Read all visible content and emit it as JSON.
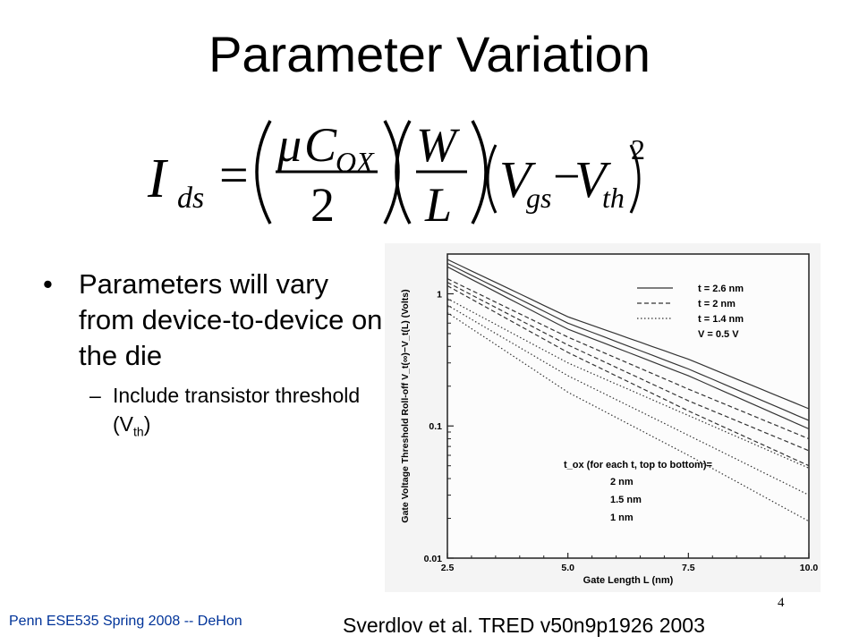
{
  "slide": {
    "title": "Parameter Variation",
    "equation": {
      "lhs": "I",
      "lhs_sub": "ds",
      "equals": "=",
      "f1_num_mu": "μ",
      "f1_num_c": "C",
      "f1_num_sub": "OX",
      "f1_den": "2",
      "f2_num": "W",
      "f2_den": "L",
      "v1": "V",
      "v1_sub": "gs",
      "minus": "−",
      "v2": "V",
      "v2_sub": "th",
      "exponent": "2"
    },
    "bullet_main": "Parameters will vary from device-to-device on the die",
    "bullet_sub_text": "Include transistor threshold (V",
    "bullet_sub_subscript": "th",
    "bullet_sub_close": ")",
    "bullet_symbol": "•",
    "dash_symbol": "–",
    "footer": "Penn ESE535 Spring 2008 -- DeHon",
    "page_number": "4",
    "citation": "Sverdlov et al. TRED v50n9p1926 2003"
  },
  "chart_data": {
    "type": "line",
    "xlabel": "Gate Length L (nm)",
    "ylabel": "Gate Voltage Threshold Roll-off V_t(∞)−V_t(L) (Volts)",
    "xlim": [
      2.5,
      10.0
    ],
    "ylim": [
      0.01,
      2
    ],
    "y_scale": "log",
    "x_ticks": [
      "2.5",
      "5.0",
      "7.5",
      "10.0"
    ],
    "y_ticks": [
      "0.01",
      "0.1",
      "1"
    ],
    "grid": false,
    "legend": {
      "placement": "top-right",
      "entries": [
        {
          "label": "t = 2.6 nm",
          "style": "solid"
        },
        {
          "label": "t = 2 nm",
          "style": "dashed"
        },
        {
          "label": "t = 1.4 nm",
          "style": "dotted"
        },
        {
          "label": "V = 0.5 V",
          "style": "none"
        }
      ]
    },
    "annotation": {
      "header": "t_ox (for each t, top to bottom)=",
      "items": [
        "2 nm",
        "1.5 nm",
        "1 nm"
      ]
    },
    "series": [
      {
        "style": "solid",
        "x": [
          2.5,
          5.0,
          7.5,
          10.0
        ],
        "y": [
          1.82,
          0.67,
          0.32,
          0.135
        ]
      },
      {
        "style": "solid",
        "x": [
          2.5,
          5.0,
          7.5,
          10.0
        ],
        "y": [
          1.7,
          0.6,
          0.27,
          0.11
        ]
      },
      {
        "style": "solid",
        "x": [
          2.5,
          5.0,
          7.5,
          10.0
        ],
        "y": [
          1.6,
          0.54,
          0.24,
          0.095
        ]
      },
      {
        "style": "dashed",
        "x": [
          2.5,
          5.0,
          7.5,
          10.0
        ],
        "y": [
          1.3,
          0.47,
          0.19,
          0.08
        ]
      },
      {
        "style": "dashed",
        "x": [
          2.5,
          5.0,
          7.5,
          10.0
        ],
        "y": [
          1.22,
          0.41,
          0.155,
          0.065
        ]
      },
      {
        "style": "dashed",
        "x": [
          2.5,
          5.0,
          7.5,
          10.0
        ],
        "y": [
          1.15,
          0.36,
          0.13,
          0.05
        ]
      },
      {
        "style": "dotted",
        "x": [
          2.5,
          5.0,
          7.5,
          10.0
        ],
        "y": [
          0.92,
          0.3,
          0.12,
          0.048
        ]
      },
      {
        "style": "dotted",
        "x": [
          2.5,
          5.0,
          7.5,
          10.0
        ],
        "y": [
          0.82,
          0.24,
          0.085,
          0.03
        ]
      },
      {
        "style": "dotted",
        "x": [
          2.5,
          5.0,
          7.5,
          10.0
        ],
        "y": [
          0.72,
          0.18,
          0.06,
          0.019
        ]
      }
    ]
  }
}
